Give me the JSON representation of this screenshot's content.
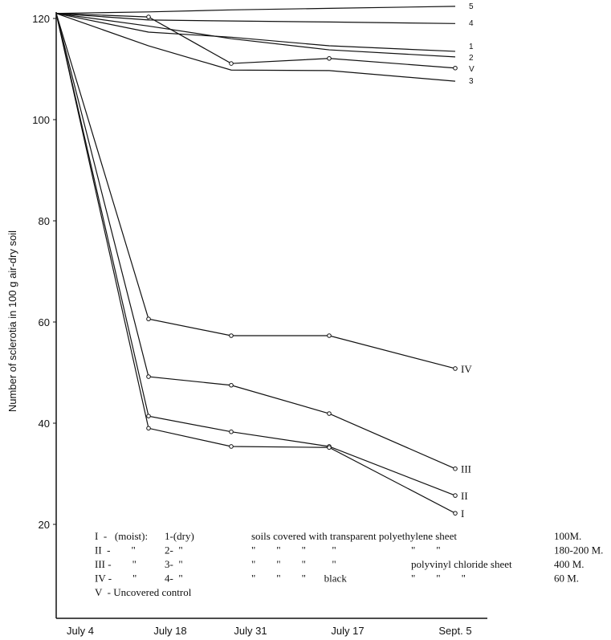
{
  "chart_data": {
    "type": "line",
    "title": "",
    "xlabel": "",
    "ylabel": "Number of sclerotia in 100 g air-dry soil",
    "categories": [
      "July 4",
      "July 18",
      "July 31",
      "July 17",
      "Sept. 5"
    ],
    "ylim": [
      17,
      122
    ],
    "yticks": [
      20,
      40,
      60,
      80,
      100,
      120
    ],
    "grid": false,
    "series": [
      {
        "name": "5",
        "values": [
          121,
          121.3,
          121.7,
          122,
          122.4
        ],
        "markers": false
      },
      {
        "name": "4",
        "values": [
          121,
          119.7,
          119.5,
          119.3,
          119
        ],
        "markers": false
      },
      {
        "name": "1",
        "values": [
          121,
          117.3,
          116.3,
          114.6,
          113.5
        ],
        "markers": false
      },
      {
        "name": "2",
        "values": [
          121,
          118.5,
          116,
          113.8,
          112.4
        ],
        "markers": false
      },
      {
        "name": "V",
        "values": [
          121,
          120.3,
          111.1,
          112.1,
          110.2
        ],
        "markers": true
      },
      {
        "name": "3",
        "values": [
          121,
          114.6,
          109.8,
          109.7,
          107.6
        ],
        "markers": false
      },
      {
        "name": "IV",
        "values": [
          121,
          60.6,
          57.3,
          57.3,
          50.8
        ],
        "markers": true
      },
      {
        "name": "III",
        "values": [
          121,
          49.2,
          47.5,
          41.9,
          31
        ],
        "markers": true
      },
      {
        "name": "II",
        "values": [
          121,
          41.4,
          38.3,
          35.4,
          25.7
        ],
        "markers": true
      },
      {
        "name": "I",
        "values": [
          121,
          39,
          35.4,
          35.2,
          22.2
        ],
        "markers": true
      }
    ],
    "legend": {
      "placement": "bottom-left inside",
      "rows": [
        [
          "I  -   (moist):",
          "1-(dry)",
          "soils covered with transparent polyethylene sheet",
          "",
          "100M."
        ],
        [
          "II  -        \"",
          "2-  \"",
          "\"        \"        \"          \"",
          "\"        \"",
          "180-200 M."
        ],
        [
          "III -        \"",
          "3-  \"",
          "\"        \"        \"          \"",
          "polyvinyl chloride sheet",
          "400 M."
        ],
        [
          "IV -        \"",
          "4-  \"",
          "\"        \"        \"       black",
          "\"        \"        \"",
          "60 M."
        ],
        [
          "V  - Uncovered control",
          "",
          "",
          "",
          ""
        ]
      ]
    }
  }
}
